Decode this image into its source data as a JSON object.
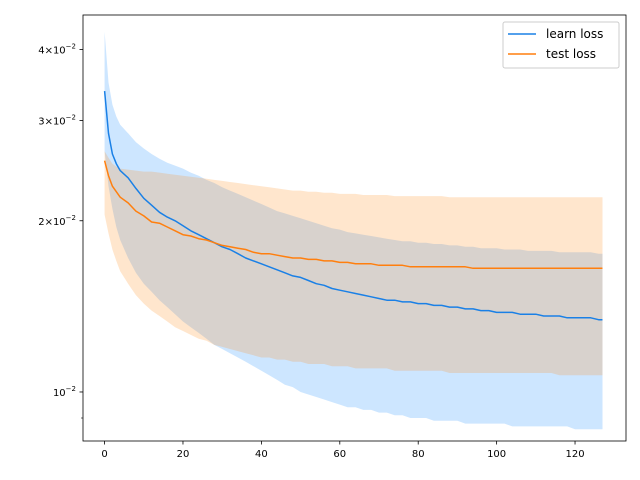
{
  "chart_data": {
    "type": "line",
    "yscale": "log",
    "xlim": [
      -5.5,
      133
    ],
    "ylim": [
      0.0082,
      0.046
    ],
    "xticks": [
      0,
      20,
      40,
      60,
      80,
      100,
      120
    ],
    "xtick_labels": [
      "0",
      "20",
      "40",
      "60",
      "80",
      "100",
      "120"
    ],
    "yticks": [
      0.01,
      0.02,
      0.03,
      0.04
    ],
    "ytick_labels": [
      {
        "base": "10",
        "exp": "−2",
        "mantissa": ""
      },
      {
        "base": "10",
        "exp": "−2",
        "mantissa": "2×"
      },
      {
        "base": "10",
        "exp": "−2",
        "mantissa": "3×"
      },
      {
        "base": "10",
        "exp": "−2",
        "mantissa": "4×"
      }
    ],
    "minor_yticks": [
      0.009
    ],
    "legend": {
      "placement": "top-right"
    },
    "grid": false,
    "series": [
      {
        "name": "learn loss",
        "color": "#1a80e6",
        "band_color": "#1a8cff",
        "band_opacity": 0.22,
        "x": [
          0,
          1,
          2,
          3,
          4,
          6,
          8,
          10,
          12,
          14,
          16,
          18,
          20,
          22,
          24,
          26,
          28,
          30,
          32,
          34,
          36,
          38,
          40,
          42,
          44,
          46,
          48,
          50,
          52,
          54,
          56,
          58,
          60,
          62,
          64,
          66,
          68,
          70,
          72,
          74,
          76,
          78,
          80,
          82,
          84,
          86,
          88,
          90,
          92,
          94,
          96,
          98,
          100,
          102,
          104,
          106,
          108,
          110,
          112,
          114,
          116,
          118,
          120,
          122,
          124,
          126,
          127
        ],
        "mean": [
          0.0338,
          0.0285,
          0.0262,
          0.0252,
          0.0245,
          0.0238,
          0.0228,
          0.0219,
          0.0213,
          0.0207,
          0.0203,
          0.02,
          0.0196,
          0.0192,
          0.0189,
          0.0186,
          0.0183,
          0.018,
          0.0178,
          0.0175,
          0.0172,
          0.017,
          0.0168,
          0.0166,
          0.0164,
          0.0162,
          0.016,
          0.0159,
          0.0157,
          0.0155,
          0.0154,
          0.0152,
          0.0151,
          0.015,
          0.0149,
          0.0148,
          0.0147,
          0.0146,
          0.0145,
          0.0145,
          0.0144,
          0.0144,
          0.0143,
          0.0143,
          0.0142,
          0.0142,
          0.0141,
          0.0141,
          0.014,
          0.014,
          0.0139,
          0.0139,
          0.0138,
          0.0138,
          0.0138,
          0.0137,
          0.0137,
          0.0137,
          0.0136,
          0.0136,
          0.0136,
          0.0135,
          0.0135,
          0.0135,
          0.0135,
          0.0134,
          0.0134
        ],
        "upper": [
          0.043,
          0.035,
          0.032,
          0.0305,
          0.0295,
          0.0285,
          0.0275,
          0.0268,
          0.0262,
          0.0257,
          0.0253,
          0.025,
          0.0247,
          0.0243,
          0.024,
          0.0236,
          0.0233,
          0.0229,
          0.0226,
          0.0223,
          0.022,
          0.0217,
          0.0214,
          0.0211,
          0.0208,
          0.0206,
          0.0204,
          0.0202,
          0.02,
          0.0198,
          0.0196,
          0.0194,
          0.0193,
          0.0191,
          0.019,
          0.0189,
          0.0188,
          0.0187,
          0.0186,
          0.0185,
          0.0184,
          0.0184,
          0.0183,
          0.0183,
          0.0182,
          0.0182,
          0.0181,
          0.0181,
          0.018,
          0.018,
          0.0179,
          0.0179,
          0.0179,
          0.0178,
          0.0178,
          0.0178,
          0.0177,
          0.0177,
          0.0177,
          0.0177,
          0.0176,
          0.0176,
          0.0176,
          0.0176,
          0.0176,
          0.0175,
          0.0175
        ],
        "lower": [
          0.0265,
          0.023,
          0.021,
          0.0195,
          0.0185,
          0.0172,
          0.0162,
          0.0155,
          0.015,
          0.0145,
          0.0141,
          0.0137,
          0.0133,
          0.013,
          0.0127,
          0.0124,
          0.0121,
          0.0119,
          0.0117,
          0.0115,
          0.0113,
          0.0111,
          0.0109,
          0.0107,
          0.0105,
          0.0103,
          0.0102,
          0.01,
          0.0099,
          0.0098,
          0.0097,
          0.0096,
          0.0095,
          0.0094,
          0.0094,
          0.0093,
          0.0093,
          0.0092,
          0.0092,
          0.0091,
          0.0091,
          0.009,
          0.009,
          0.009,
          0.0089,
          0.0089,
          0.0089,
          0.0089,
          0.0088,
          0.0088,
          0.0088,
          0.0088,
          0.0088,
          0.0088,
          0.0087,
          0.0087,
          0.0087,
          0.0087,
          0.0087,
          0.0087,
          0.0087,
          0.0087,
          0.0086,
          0.0086,
          0.0086,
          0.0086,
          0.0086
        ]
      },
      {
        "name": "test loss",
        "color": "#ff7f0e",
        "band_color": "#ff8c1a",
        "band_opacity": 0.22,
        "x": [
          0,
          1,
          2,
          3,
          4,
          6,
          8,
          10,
          12,
          14,
          16,
          18,
          20,
          22,
          24,
          26,
          28,
          30,
          32,
          34,
          36,
          38,
          40,
          42,
          44,
          46,
          48,
          50,
          52,
          54,
          56,
          58,
          60,
          62,
          64,
          66,
          68,
          70,
          72,
          74,
          76,
          78,
          80,
          82,
          84,
          86,
          88,
          90,
          92,
          94,
          96,
          98,
          100,
          102,
          104,
          106,
          108,
          110,
          112,
          114,
          116,
          118,
          120,
          122,
          124,
          126,
          127
        ],
        "mean": [
          0.0255,
          0.024,
          0.023,
          0.0225,
          0.022,
          0.0215,
          0.0208,
          0.0204,
          0.0199,
          0.0198,
          0.0195,
          0.0192,
          0.0189,
          0.0188,
          0.0186,
          0.0185,
          0.0183,
          0.0181,
          0.018,
          0.0179,
          0.0178,
          0.0176,
          0.0175,
          0.0175,
          0.0174,
          0.0173,
          0.0172,
          0.0172,
          0.0171,
          0.0171,
          0.017,
          0.017,
          0.0169,
          0.0169,
          0.0168,
          0.0168,
          0.0168,
          0.0167,
          0.0167,
          0.0167,
          0.0167,
          0.0166,
          0.0166,
          0.0166,
          0.0166,
          0.0166,
          0.0166,
          0.0166,
          0.0166,
          0.0165,
          0.0165,
          0.0165,
          0.0165,
          0.0165,
          0.0165,
          0.0165,
          0.0165,
          0.0165,
          0.0165,
          0.0165,
          0.0165,
          0.0165,
          0.0165,
          0.0165,
          0.0165,
          0.0165,
          0.0165
        ],
        "upper": [
          0.0265,
          0.0258,
          0.0252,
          0.0249,
          0.0247,
          0.0246,
          0.0245,
          0.0244,
          0.0244,
          0.0243,
          0.0242,
          0.0241,
          0.024,
          0.0239,
          0.0238,
          0.0237,
          0.0236,
          0.0235,
          0.0234,
          0.0233,
          0.0232,
          0.0231,
          0.023,
          0.0229,
          0.0228,
          0.0227,
          0.0226,
          0.0226,
          0.0225,
          0.0225,
          0.0224,
          0.0224,
          0.0223,
          0.0223,
          0.0223,
          0.0222,
          0.0222,
          0.0222,
          0.0222,
          0.0221,
          0.0221,
          0.0221,
          0.0221,
          0.0221,
          0.0221,
          0.0221,
          0.022,
          0.022,
          0.022,
          0.022,
          0.022,
          0.022,
          0.022,
          0.022,
          0.022,
          0.022,
          0.022,
          0.022,
          0.022,
          0.022,
          0.022,
          0.022,
          0.022,
          0.022,
          0.022,
          0.022,
          0.022
        ],
        "lower": [
          0.0205,
          0.019,
          0.0178,
          0.017,
          0.0163,
          0.0155,
          0.0148,
          0.0143,
          0.0139,
          0.0136,
          0.0133,
          0.013,
          0.0128,
          0.0126,
          0.0124,
          0.0123,
          0.0121,
          0.012,
          0.0119,
          0.0118,
          0.0117,
          0.0116,
          0.0115,
          0.0115,
          0.0114,
          0.0114,
          0.0113,
          0.0113,
          0.0112,
          0.0112,
          0.0112,
          0.0111,
          0.0111,
          0.0111,
          0.011,
          0.011,
          0.011,
          0.011,
          0.011,
          0.0109,
          0.0109,
          0.0109,
          0.0109,
          0.0109,
          0.0109,
          0.0109,
          0.0108,
          0.0108,
          0.0108,
          0.0108,
          0.0108,
          0.0108,
          0.0108,
          0.0108,
          0.0108,
          0.0108,
          0.0108,
          0.0108,
          0.0108,
          0.0108,
          0.0107,
          0.0107,
          0.0107,
          0.0107,
          0.0107,
          0.0107,
          0.0107
        ]
      }
    ]
  }
}
